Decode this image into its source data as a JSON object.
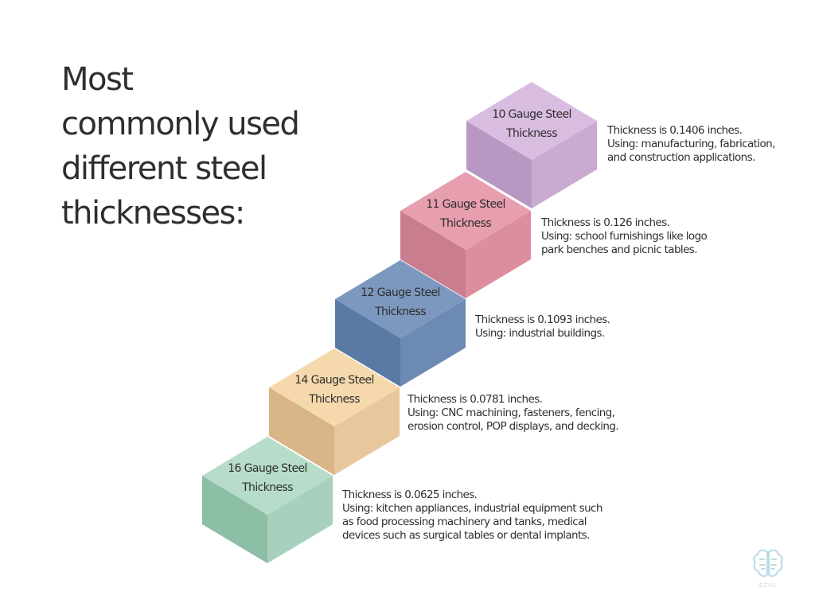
{
  "title_lines": [
    "Most",
    "commonly used",
    "different steel",
    "thicknesses:"
  ],
  "steps": [
    {
      "label_lines": [
        "16 Gauge Steel",
        "Thickness"
      ],
      "desc_lines": [
        "Thickness is 0.0625 inches.",
        "Using: kitchen appliances, industrial equipment such",
        "as food processing machinery and tanks, medical",
        "devices such as surgical tables or dental implants."
      ],
      "colors": {
        "top": "#b7dcc9",
        "left": "#8dbfa7",
        "right": "#a7d1bd"
      }
    },
    {
      "label_lines": [
        "14 Gauge Steel",
        "Thickness"
      ],
      "desc_lines": [
        "Thickness is 0.0781 inches.",
        "Using: CNC machining, fasteners, fencing,",
        "erosion control, POP displays, and decking."
      ],
      "colors": {
        "top": "#f5d9ad",
        "left": "#d8b486",
        "right": "#e8c79c"
      }
    },
    {
      "label_lines": [
        "12 Gauge Steel",
        "Thickness"
      ],
      "desc_lines": [
        "Thickness is 0.1093 inches.",
        "Using: industrial buildings."
      ],
      "colors": {
        "top": "#7c98bf",
        "left": "#5a7aa3",
        "right": "#6c8ab3"
      }
    },
    {
      "label_lines": [
        "11 Gauge Steel",
        "Thickness"
      ],
      "desc_lines": [
        "Thickness is 0.126 inches.",
        "Using: school furnishings like logo",
        "park benches and picnic tables."
      ],
      "colors": {
        "top": "#e79eae",
        "left": "#c97d8e",
        "right": "#dc8e9f"
      }
    },
    {
      "label_lines": [
        "10 Gauge Steel",
        "Thickness"
      ],
      "desc_lines": [
        "Thickness is 0.1406 inches.",
        "Using: manufacturing, fabrication,",
        "and construction applications."
      ],
      "colors": {
        "top": "#d9bde0",
        "left": "#b898c2",
        "right": "#c9abd2"
      }
    }
  ],
  "logo": {
    "text": "EZIIL",
    "icon": "brain-icon",
    "color": "#b9dbe6"
  }
}
